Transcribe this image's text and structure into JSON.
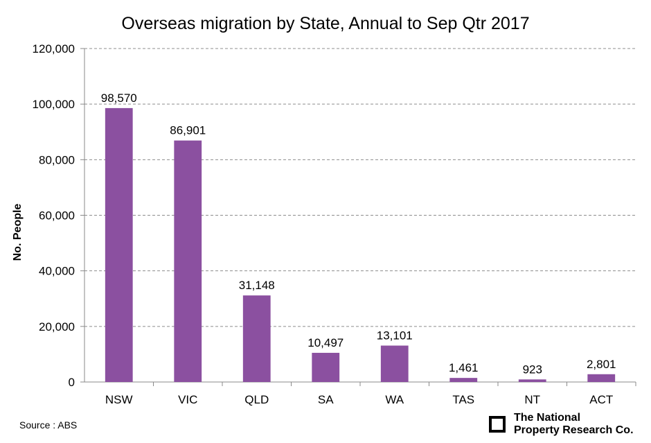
{
  "chart_data": {
    "type": "bar",
    "title": "Overseas migration by State, Annual to Sep Qtr 2017",
    "ylabel": "No. People",
    "xlabel": "",
    "categories": [
      "NSW",
      "VIC",
      "QLD",
      "SA",
      "WA",
      "TAS",
      "NT",
      "ACT"
    ],
    "values": [
      98570,
      86901,
      31148,
      10497,
      13101,
      1461,
      923,
      2801
    ],
    "data_labels": [
      "98,570",
      "86,901",
      "31,148",
      "10,497",
      "13,101",
      "1,461",
      "923",
      "2,801"
    ],
    "ylim": [
      0,
      120000
    ],
    "yticks": [
      0,
      20000,
      40000,
      60000,
      80000,
      100000,
      120000
    ],
    "ytick_labels": [
      "0",
      "20,000",
      "40,000",
      "60,000",
      "80,000",
      "100,000",
      "120,000"
    ],
    "grid": "horizontal dashed",
    "legend": "none",
    "bar_color": "#8B50A0"
  },
  "footer": {
    "source": "Source : ABS",
    "logo_line1": "The National",
    "logo_line2": "Property Research Co."
  }
}
